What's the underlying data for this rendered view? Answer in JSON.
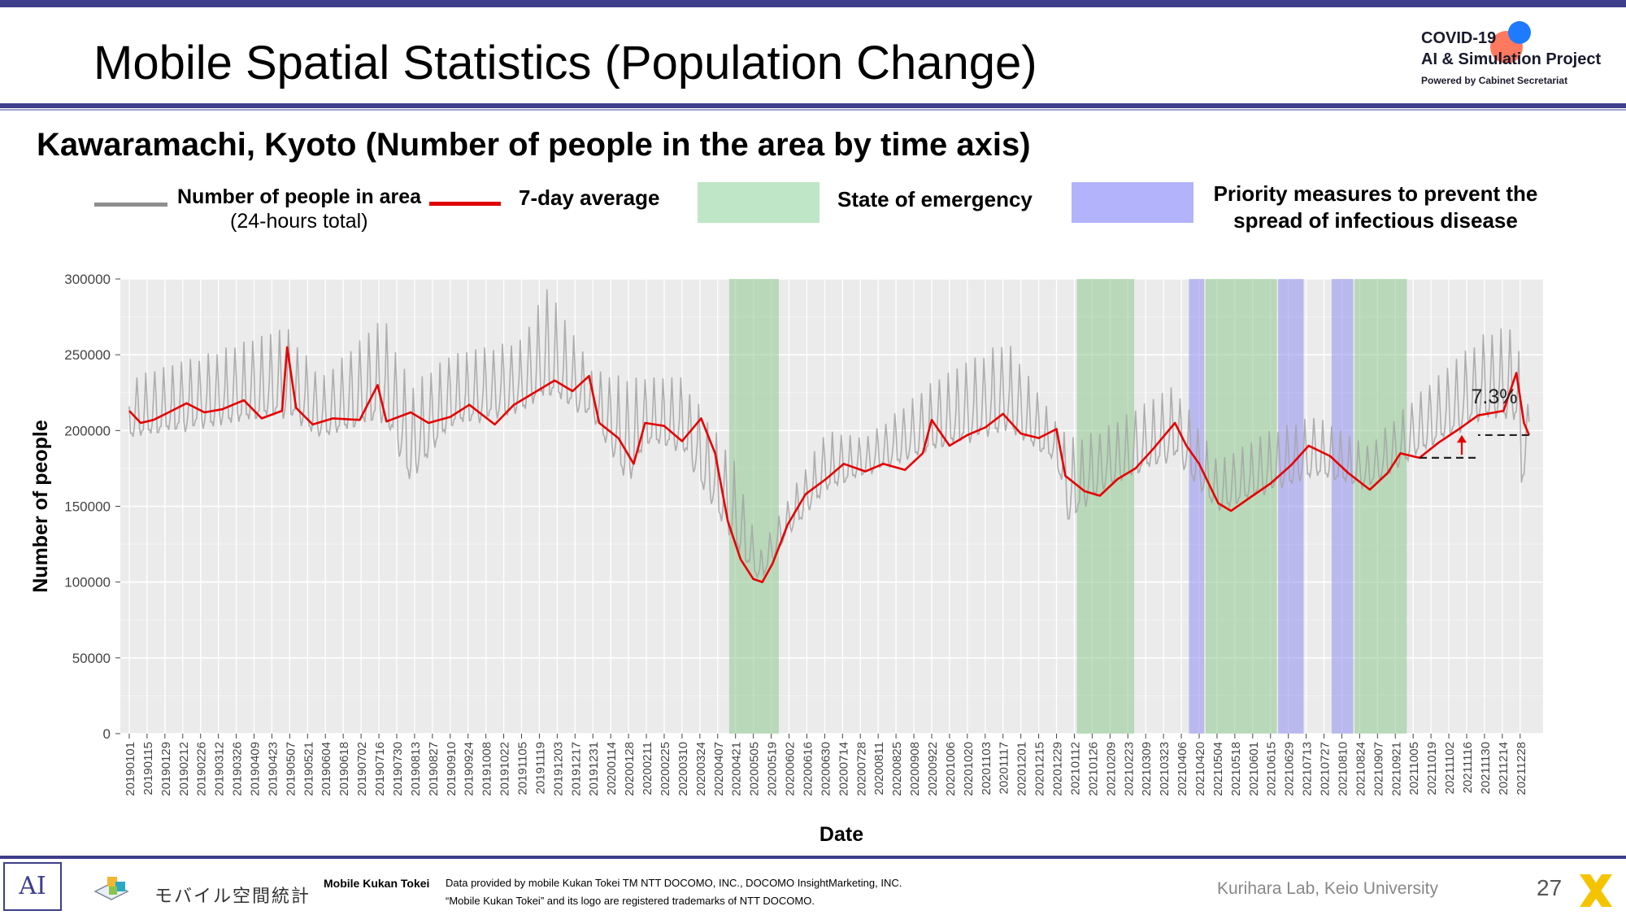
{
  "slide": {
    "title": "Mobile Spatial Statistics (Population Change)",
    "subtitle": "Kawaramachi, Kyoto (Number of people in the area by time axis)",
    "page_number": "27"
  },
  "logo": {
    "line1": "COVID-19",
    "line2": "AI & Simulation Project",
    "line3": "Powered by Cabinet Secretariat"
  },
  "legend": {
    "people_label": "Number of people in area",
    "people_sublabel": "(24-hours total)",
    "avg_label": "7-day average",
    "emergency_label": "State of emergency",
    "priority_label": "Priority measures to prevent the spread of infectious disease"
  },
  "footer": {
    "ai_logo": "AI",
    "mobile_kukan_logo_text": "モバイル空間統計",
    "brand": "Mobile Kukan Tokei",
    "disclaimer1": "Data provided by mobile Kukan Tokei TM NTT DOCOMO, INC., DOCOMO InsightMarketing, INC.",
    "disclaimer2": "“Mobile Kukan Tokei” and its logo are registered trademarks of NTT DOCOMO.",
    "lab": "Kurihara Lab, Keio University"
  },
  "colors": {
    "daily": "#a6a6a6",
    "average": "#e60000",
    "emergency": "#8ec98f",
    "priority": "#8f8ff0",
    "panel": "#ebebeb",
    "accent": "#3d3f8a"
  },
  "chart_data": {
    "type": "line",
    "xlabel": "Date",
    "ylabel": "Number of people",
    "ylim": [
      0,
      300000
    ],
    "yticks": [
      "0",
      "50000",
      "100000",
      "150000",
      "200000",
      "250000",
      "300000"
    ],
    "xticks": [
      "20190101",
      "20190115",
      "20190129",
      "20190212",
      "20190226",
      "20190312",
      "20190326",
      "20190409",
      "20190423",
      "20190507",
      "20190521",
      "20190604",
      "20190618",
      "20190702",
      "20190716",
      "20190730",
      "20190813",
      "20190827",
      "20190910",
      "20190924",
      "20191008",
      "20191022",
      "20191105",
      "20191119",
      "20191203",
      "20191217",
      "20191231",
      "20200114",
      "20200128",
      "20200211",
      "20200225",
      "20200310",
      "20200324",
      "20200407",
      "20200421",
      "20200505",
      "20200519",
      "20200602",
      "20200616",
      "20200630",
      "20200714",
      "20200728",
      "20200811",
      "20200825",
      "20200908",
      "20200922",
      "20201006",
      "20201020",
      "20201103",
      "20201117",
      "20201201",
      "20201215",
      "20201229",
      "20210112",
      "20210126",
      "20210209",
      "20210223",
      "20210309",
      "20210323",
      "20210406",
      "20210420",
      "20210504",
      "20210518",
      "20210601",
      "20210615",
      "20210629",
      "20210713",
      "20210727",
      "20210810",
      "20210824",
      "20210907",
      "20210921",
      "20211005",
      "20211019",
      "20211102",
      "20211116",
      "20211130",
      "20211214",
      "20211228"
    ],
    "grid": true,
    "annotation": "7.3%",
    "emergency_periods": [
      [
        "20200416",
        "20200525"
      ],
      [
        "20210114",
        "20210228"
      ],
      [
        "20210425",
        "20210620"
      ],
      [
        "20210820",
        "20210930"
      ]
    ],
    "priority_periods": [
      [
        "20210412",
        "20210424"
      ],
      [
        "20210621",
        "20210711"
      ],
      [
        "20210802",
        "20210819"
      ]
    ],
    "series": [
      {
        "name": "7-day average",
        "points": [
          [
            "20190101",
            213000
          ],
          [
            "20190110",
            205000
          ],
          [
            "20190120",
            207000
          ],
          [
            "20190201",
            212000
          ],
          [
            "20190215",
            218000
          ],
          [
            "20190301",
            212000
          ],
          [
            "20190315",
            214000
          ],
          [
            "20190401",
            220000
          ],
          [
            "20190415",
            208000
          ],
          [
            "20190501",
            213000
          ],
          [
            "20190505",
            255000
          ],
          [
            "20190512",
            215000
          ],
          [
            "20190525",
            204000
          ],
          [
            "20190610",
            208000
          ],
          [
            "20190701",
            207000
          ],
          [
            "20190715",
            230000
          ],
          [
            "20190722",
            206000
          ],
          [
            "20190810",
            212000
          ],
          [
            "20190824",
            205000
          ],
          [
            "20190910",
            209000
          ],
          [
            "20190925",
            217000
          ],
          [
            "20191015",
            204000
          ],
          [
            "20191030",
            217000
          ],
          [
            "20191115",
            225000
          ],
          [
            "20191201",
            233000
          ],
          [
            "20191215",
            226000
          ],
          [
            "20191228",
            236000
          ],
          [
            "20200105",
            205000
          ],
          [
            "20200120",
            195000
          ],
          [
            "20200201",
            178000
          ],
          [
            "20200210",
            205000
          ],
          [
            "20200225",
            203000
          ],
          [
            "20200310",
            193000
          ],
          [
            "20200325",
            208000
          ],
          [
            "20200405",
            185000
          ],
          [
            "20200415",
            140000
          ],
          [
            "20200425",
            115000
          ],
          [
            "20200505",
            102000
          ],
          [
            "20200512",
            100000
          ],
          [
            "20200520",
            112000
          ],
          [
            "20200601",
            138000
          ],
          [
            "20200615",
            158000
          ],
          [
            "20200701",
            168000
          ],
          [
            "20200715",
            178000
          ],
          [
            "20200801",
            173000
          ],
          [
            "20200815",
            178000
          ],
          [
            "20200901",
            174000
          ],
          [
            "20200915",
            185000
          ],
          [
            "20200922",
            207000
          ],
          [
            "20201006",
            190000
          ],
          [
            "20201020",
            197000
          ],
          [
            "20201103",
            202000
          ],
          [
            "20201117",
            211000
          ],
          [
            "20201201",
            198000
          ],
          [
            "20201215",
            195000
          ],
          [
            "20201229",
            201000
          ],
          [
            "20210105",
            170000
          ],
          [
            "20210120",
            160000
          ],
          [
            "20210201",
            157000
          ],
          [
            "20210215",
            168000
          ],
          [
            "20210301",
            175000
          ],
          [
            "20210315",
            188000
          ],
          [
            "20210401",
            205000
          ],
          [
            "20210410",
            190000
          ],
          [
            "20210420",
            178000
          ],
          [
            "20210505",
            152000
          ],
          [
            "20210515",
            147000
          ],
          [
            "20210601",
            157000
          ],
          [
            "20210615",
            165000
          ],
          [
            "20210701",
            177000
          ],
          [
            "20210715",
            190000
          ],
          [
            "20210801",
            183000
          ],
          [
            "20210815",
            172000
          ],
          [
            "20210901",
            161000
          ],
          [
            "20210915",
            172000
          ],
          [
            "20210925",
            185000
          ],
          [
            "20211010",
            182000
          ],
          [
            "20211025",
            192000
          ],
          [
            "20211110",
            201000
          ],
          [
            "20211125",
            210000
          ],
          [
            "20211215",
            213000
          ],
          [
            "20211225",
            238000
          ],
          [
            "20211231",
            205000
          ],
          [
            "20220104",
            197000
          ]
        ]
      },
      {
        "name": "Number of people in area (24-hours total)",
        "range_points": [
          [
            "20190101",
            185000,
            235000
          ],
          [
            "20190301",
            190000,
            250000
          ],
          [
            "20190505",
            195000,
            268000
          ],
          [
            "20190601",
            185000,
            235000
          ],
          [
            "20190720",
            190000,
            275000
          ],
          [
            "20190810",
            150000,
            230000
          ],
          [
            "20190910",
            190000,
            250000
          ],
          [
            "20191105",
            200000,
            260000
          ],
          [
            "20191125",
            205000,
            295000
          ],
          [
            "20191231",
            200000,
            240000
          ],
          [
            "20200128",
            145000,
            235000
          ],
          [
            "20200210",
            180000,
            235000
          ],
          [
            "20200310",
            175000,
            235000
          ],
          [
            "20200420",
            110000,
            180000
          ],
          [
            "20200510",
            95000,
            120000
          ],
          [
            "20200601",
            125000,
            155000
          ],
          [
            "20200701",
            150000,
            200000
          ],
          [
            "20200801",
            165000,
            195000
          ],
          [
            "20200922",
            175000,
            232000
          ],
          [
            "20201120",
            185000,
            260000
          ],
          [
            "20201229",
            172000,
            205000
          ],
          [
            "20210108",
            125000,
            195000
          ],
          [
            "20210201",
            150000,
            200000
          ],
          [
            "20210401",
            170000,
            230000
          ],
          [
            "20210505",
            138000,
            180000
          ],
          [
            "20210615",
            150000,
            200000
          ],
          [
            "20210720",
            160000,
            210000
          ],
          [
            "20210830",
            155000,
            190000
          ],
          [
            "20211010",
            175000,
            225000
          ],
          [
            "20211201",
            195000,
            265000
          ],
          [
            "20211225",
            190000,
            270000
          ],
          [
            "20211229",
            140000,
            235000
          ],
          [
            "20220104",
            185000,
            215000
          ]
        ]
      }
    ]
  }
}
